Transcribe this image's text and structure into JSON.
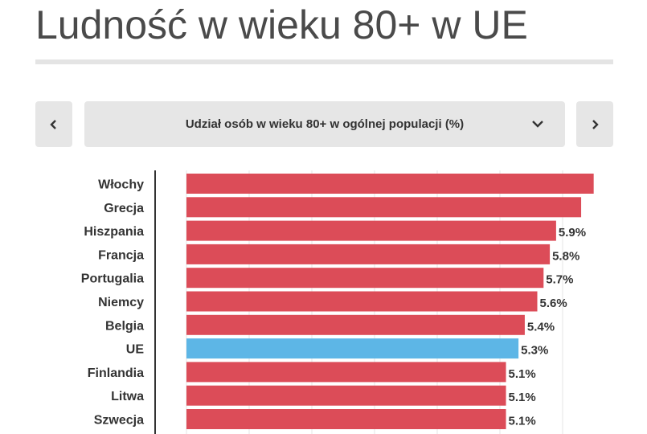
{
  "page": {
    "title": "Ludność w wieku 80+ w UE"
  },
  "controls": {
    "prev_icon": "chevron-left-icon",
    "next_icon": "chevron-right-icon",
    "dropdown_label": "Udział osób w wieku 80+ w ogólnej populacji (%)",
    "dropdown_icon": "chevron-down-icon"
  },
  "colors": {
    "bar": "#dc4c58",
    "highlight": "#5db6e6",
    "grid": "#e6e6e6",
    "axis": "#333333",
    "text": "#333333"
  },
  "chart_data": {
    "type": "bar",
    "orientation": "horizontal",
    "categories": [
      "Włochy",
      "Grecja",
      "Hiszpania",
      "Francja",
      "Portugalia",
      "Niemcy",
      "Belgia",
      "UE",
      "Finlandia",
      "Litwa",
      "Szwecja"
    ],
    "values": [
      6.5,
      6.3,
      5.9,
      5.8,
      5.7,
      5.6,
      5.4,
      5.3,
      5.1,
      5.1,
      5.1
    ],
    "value_labels": [
      "",
      "",
      "5.9%",
      "5.8%",
      "5.7%",
      "5.6%",
      "5.4%",
      "5.3%",
      "5.1%",
      "5.1%",
      "5.1%"
    ],
    "highlight": [
      "UE"
    ],
    "xlim": [
      0,
      6.53
    ],
    "grid": true
  }
}
